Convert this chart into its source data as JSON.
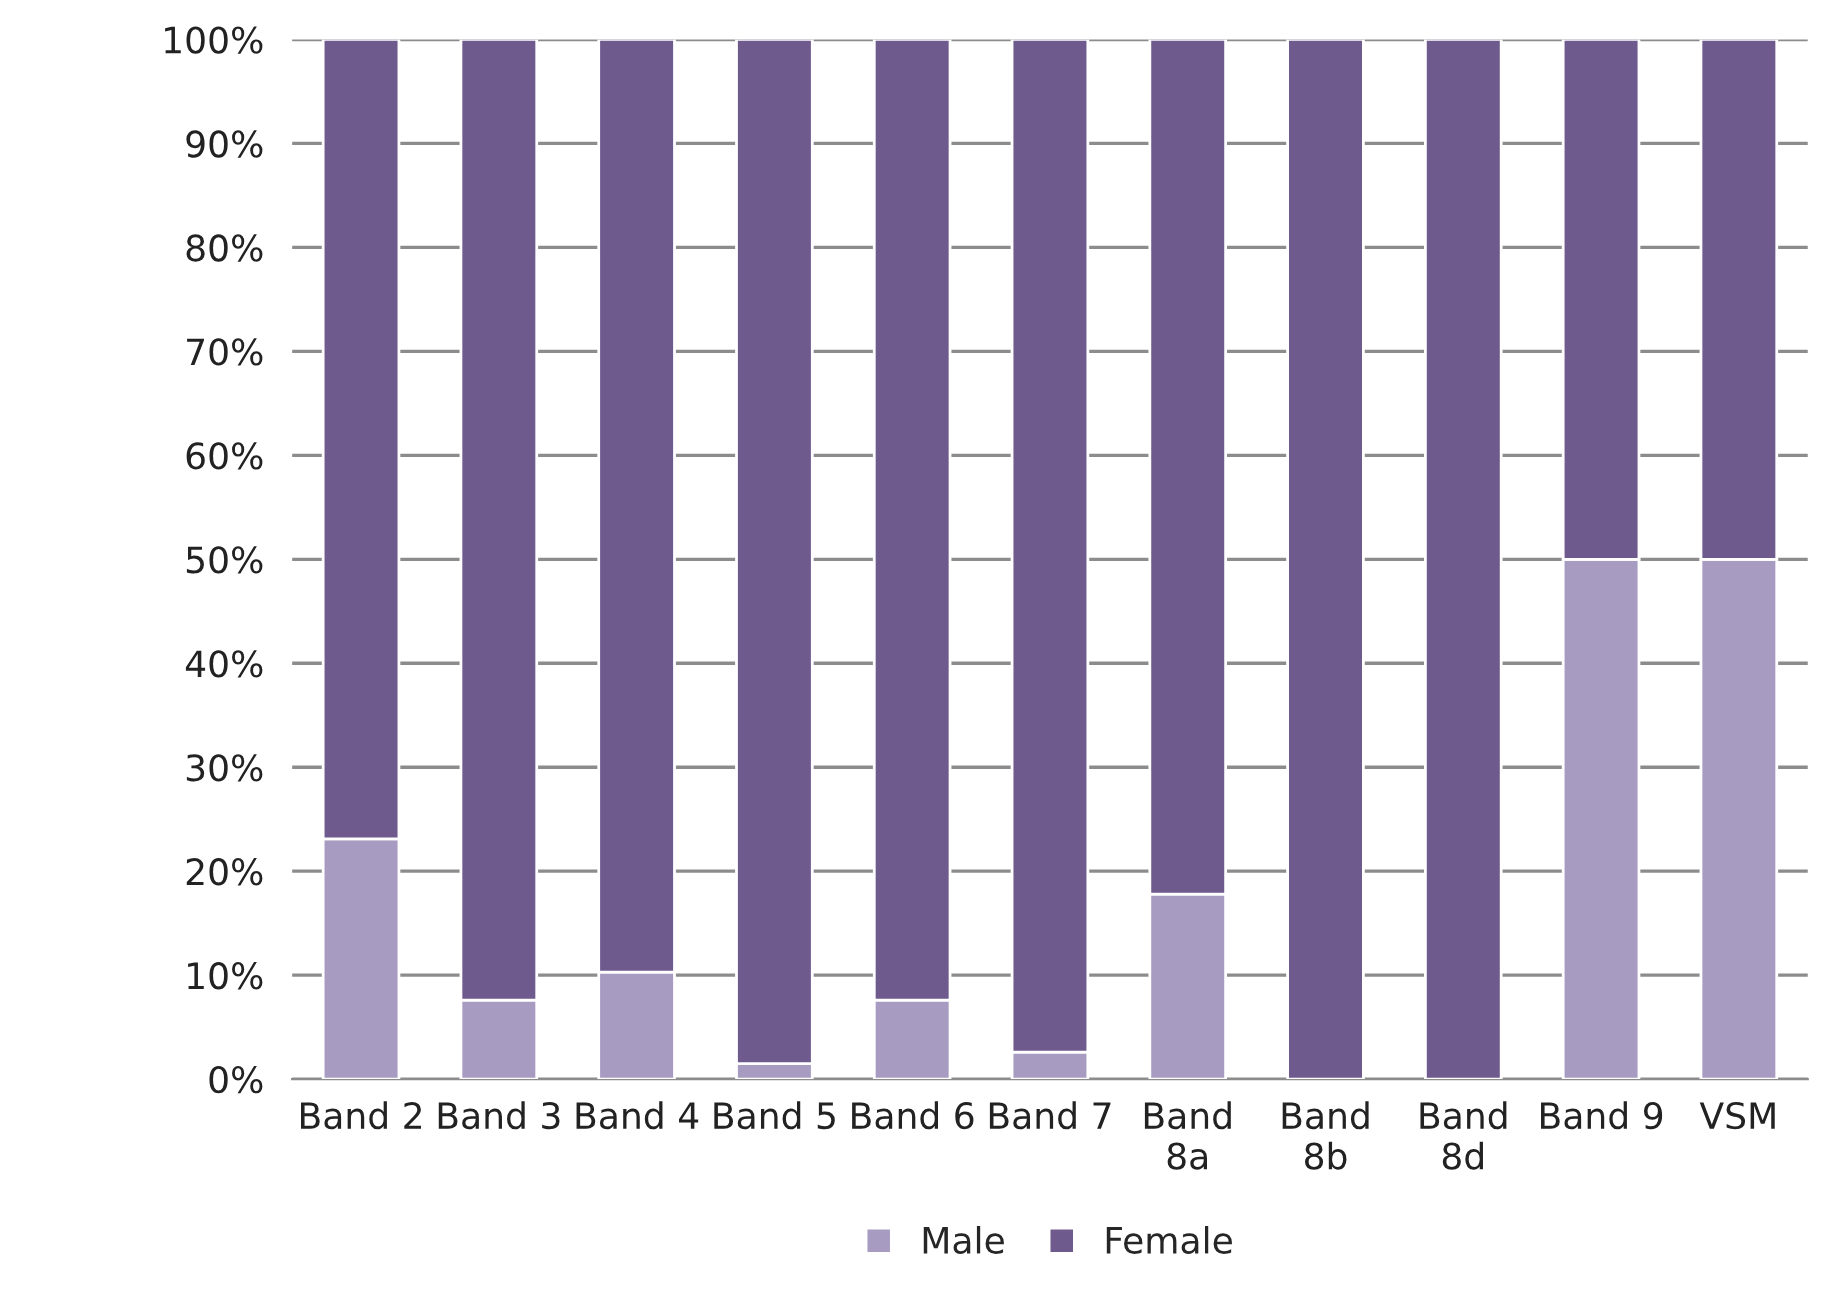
{
  "chart_data": {
    "type": "bar",
    "stacked": true,
    "categories": [
      "Band 2",
      "Band 3",
      "Band 4",
      "Band 5",
      "Band 6",
      "Band 7",
      "Band\n8a",
      "Band\n8b",
      "Band\n8d",
      "Band 9",
      "VSM"
    ],
    "series": [
      {
        "name": "Male",
        "color": "#a89bc1",
        "values": [
          23.1,
          7.6,
          10.3,
          1.5,
          7.6,
          2.6,
          17.8,
          0,
          0,
          50,
          50
        ]
      },
      {
        "name": "Female",
        "color": "#6f5a8e",
        "values": [
          76.9,
          92.4,
          89.7,
          98.5,
          92.4,
          97.4,
          82.2,
          100,
          100,
          50,
          50
        ]
      }
    ],
    "ylim": [
      0,
      100
    ],
    "yticks": [
      {
        "value": 0,
        "label": "0%"
      },
      {
        "value": 10,
        "label": "10%"
      },
      {
        "value": 20,
        "label": "20%"
      },
      {
        "value": 30,
        "label": "30%"
      },
      {
        "value": 40,
        "label": "40%"
      },
      {
        "value": 50,
        "label": "50%"
      },
      {
        "value": 60,
        "label": "60%"
      },
      {
        "value": 70,
        "label": "70%"
      },
      {
        "value": 80,
        "label": "80%"
      },
      {
        "value": 90,
        "label": "90%"
      },
      {
        "value": 100,
        "label": "100%"
      }
    ],
    "grid": "y",
    "legend": "bottom"
  }
}
